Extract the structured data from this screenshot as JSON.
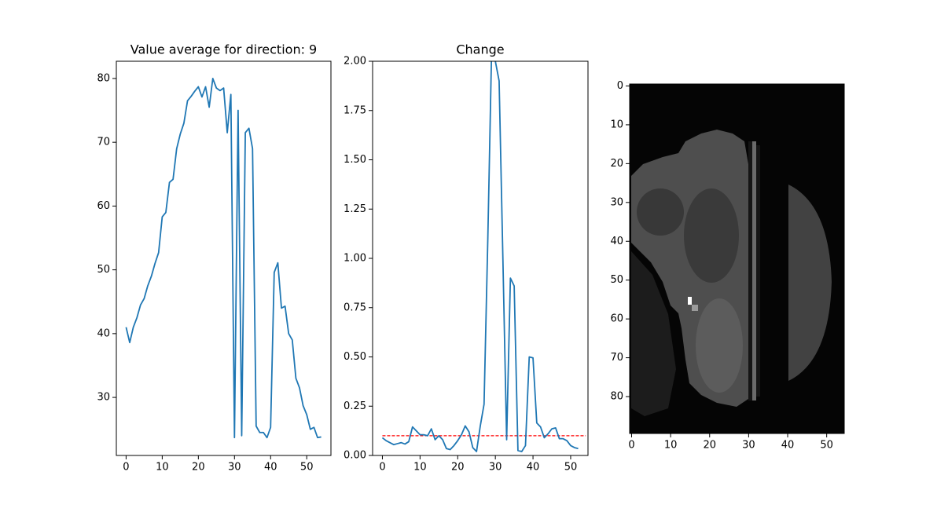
{
  "chart_data": [
    {
      "type": "line",
      "title": "Value average for direction: 9",
      "x": [
        0,
        1,
        2,
        3,
        4,
        5,
        6,
        7,
        8,
        9,
        10,
        11,
        12,
        13,
        14,
        15,
        16,
        17,
        18,
        19,
        20,
        21,
        22,
        23,
        24,
        25,
        26,
        27,
        28,
        29,
        30,
        31,
        32,
        33,
        34,
        35,
        36,
        37,
        38,
        39,
        40,
        41,
        42,
        43,
        44,
        45,
        46,
        47,
        48,
        49,
        50,
        51,
        52,
        53,
        54
      ],
      "series": [
        {
          "color": "#1f77b4",
          "values": [
            41,
            38.6,
            41,
            42.5,
            44.5,
            45.5,
            47.5,
            49,
            51,
            52.7,
            58.3,
            59,
            63.7,
            64.2,
            69,
            71.3,
            73,
            76.5,
            77.2,
            78,
            78.7,
            77.1,
            78.7,
            75.5,
            80,
            78.5,
            78.1,
            78.5,
            71.5,
            77.5,
            23.7,
            75,
            24,
            71.5,
            72.2,
            69,
            25.5,
            24.5,
            24.5,
            23.7,
            25.3,
            49.6,
            51.1,
            44,
            44.3,
            40,
            39,
            33,
            31.5,
            28.7,
            27.3,
            25,
            25.3,
            23.7,
            23.8
          ]
        }
      ],
      "xlim": [
        -2.7,
        56.7
      ],
      "xticks": [
        0,
        10,
        20,
        30,
        40,
        50
      ],
      "ylim": [
        20.9,
        82.7
      ],
      "yticks": [
        30,
        40,
        50,
        60,
        70,
        80
      ]
    },
    {
      "type": "line",
      "title": "Change",
      "x": [
        0,
        1,
        2,
        3,
        4,
        5,
        6,
        7,
        8,
        9,
        10,
        11,
        12,
        13,
        14,
        15,
        16,
        17,
        18,
        19,
        20,
        21,
        22,
        23,
        24,
        25,
        26,
        27,
        28,
        29,
        30,
        31,
        32,
        33,
        34,
        35,
        36,
        37,
        38,
        39,
        40,
        41,
        42,
        43,
        44,
        45,
        46,
        47,
        48,
        49,
        50,
        51,
        52
      ],
      "series": [
        {
          "color": "#1f77b4",
          "values": [
            0.09,
            0.075,
            0.065,
            0.055,
            0.06,
            0.065,
            0.058,
            0.07,
            0.145,
            0.125,
            0.105,
            0.105,
            0.1,
            0.135,
            0.08,
            0.1,
            0.08,
            0.035,
            0.03,
            0.05,
            0.075,
            0.105,
            0.15,
            0.12,
            0.04,
            0.02,
            0.15,
            0.26,
            1.1,
            2.05,
            2.0,
            1.9,
            1.0,
            0.08,
            0.9,
            0.86,
            0.025,
            0.02,
            0.05,
            0.5,
            0.495,
            0.165,
            0.145,
            0.09,
            0.11,
            0.135,
            0.14,
            0.085,
            0.085,
            0.075,
            0.05,
            0.04,
            0.035
          ]
        }
      ],
      "hlines": [
        {
          "y": 0.1,
          "xmin": 0,
          "xmax": 54,
          "color": "#ff0000"
        }
      ],
      "xlim": [
        -2.6,
        54.6
      ],
      "xticks": [
        0,
        10,
        20,
        30,
        40,
        50
      ],
      "ylim": [
        0,
        2
      ],
      "yticks": [
        {
          "value": 0,
          "label": "0.00"
        },
        0.25,
        {
          "value": 0.5,
          "label": "0.50"
        },
        0.75,
        {
          "value": 1,
          "label": "1.00"
        },
        1.25,
        {
          "value": 1.5,
          "label": "1.50"
        },
        1.75,
        {
          "value": 2,
          "label": "2.00"
        }
      ]
    },
    {
      "type": "image",
      "xlim": [
        -0.5,
        54.5
      ],
      "xticks": [
        0,
        10,
        20,
        30,
        40,
        50
      ],
      "ylim": [
        89.5,
        -0.5
      ],
      "yticks": [
        0,
        10,
        20,
        30,
        40,
        50,
        60,
        70,
        80
      ]
    }
  ]
}
